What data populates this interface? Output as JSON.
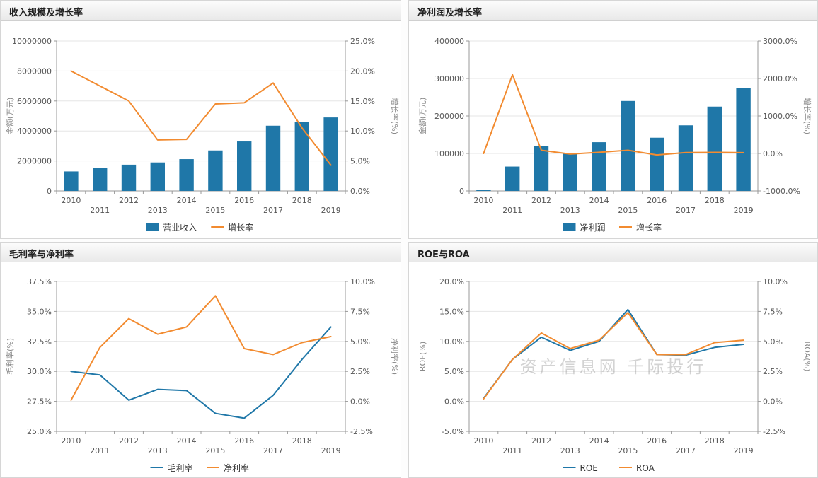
{
  "watermark": "资产信息网 千际投行",
  "charts": [
    {
      "title": "收入规模及增长率",
      "categories": [
        "2010",
        "2011",
        "2012",
        "2013",
        "2014",
        "2015",
        "2016",
        "2017",
        "2018",
        "2019"
      ],
      "left_axis": {
        "label": "金额(万元)",
        "min": 0,
        "max": 10000000,
        "step": 2000000,
        "format": "number"
      },
      "right_axis": {
        "label": "增长率(%)",
        "min": 0,
        "max": 25,
        "step": 5,
        "format": "percent"
      },
      "series": [
        {
          "name": "营业收入",
          "type": "bar",
          "axis": "left",
          "color": "#1f77a8",
          "values": [
            1300000,
            1520000,
            1750000,
            1900000,
            2120000,
            2700000,
            3300000,
            4350000,
            4600000,
            4900000
          ]
        },
        {
          "name": "增长率",
          "type": "line",
          "axis": "right",
          "color": "#f28b30",
          "values": [
            20.0,
            17.5,
            15.0,
            8.5,
            8.6,
            14.5,
            14.7,
            18.0,
            10.5,
            4.3
          ]
        }
      ]
    },
    {
      "title": "净利润及增长率",
      "categories": [
        "2010",
        "2011",
        "2012",
        "2013",
        "2014",
        "2015",
        "2016",
        "2017",
        "2018",
        "2019"
      ],
      "left_axis": {
        "label": "金额(万元)",
        "min": 0,
        "max": 400000,
        "step": 100000,
        "format": "number"
      },
      "right_axis": {
        "label": "增长率(%)",
        "min": -1000,
        "max": 3000,
        "step": 1000,
        "format": "percent"
      },
      "series": [
        {
          "name": "净利润",
          "type": "bar",
          "axis": "left",
          "color": "#1f77a8",
          "values": [
            3000,
            65000,
            120000,
            100000,
            130000,
            240000,
            142000,
            175000,
            225000,
            275000
          ]
        },
        {
          "name": "增长率",
          "type": "line",
          "axis": "right",
          "color": "#f28b30",
          "values": [
            0,
            2100,
            85,
            -17,
            30,
            85,
            -41,
            23,
            29,
            22
          ]
        }
      ]
    },
    {
      "title": "毛利率与净利率",
      "categories": [
        "2010",
        "2011",
        "2012",
        "2013",
        "2014",
        "2015",
        "2016",
        "2017",
        "2018",
        "2019"
      ],
      "left_axis": {
        "label": "毛利率(%)",
        "min": 25,
        "max": 37.5,
        "step": 2.5,
        "format": "percent"
      },
      "right_axis": {
        "label": "净利率(%)",
        "min": -2.5,
        "max": 10,
        "step": 2.5,
        "format": "percent"
      },
      "series": [
        {
          "name": "毛利率",
          "type": "line",
          "axis": "left",
          "color": "#1f77a8",
          "values": [
            30.0,
            29.7,
            27.6,
            28.5,
            28.4,
            26.5,
            26.1,
            28.0,
            31.0,
            33.7
          ]
        },
        {
          "name": "净利率",
          "type": "line",
          "axis": "right",
          "color": "#f28b30",
          "values": [
            0.1,
            4.5,
            6.9,
            5.6,
            6.2,
            8.8,
            4.4,
            3.9,
            4.9,
            5.4
          ]
        }
      ]
    },
    {
      "title": "ROE与ROA",
      "categories": [
        "2010",
        "2011",
        "2012",
        "2013",
        "2014",
        "2015",
        "2016",
        "2017",
        "2018",
        "2019"
      ],
      "left_axis": {
        "label": "ROE(%)",
        "min": -5,
        "max": 20,
        "step": 5,
        "format": "percent"
      },
      "right_axis": {
        "label": "ROA(%)",
        "min": -2.5,
        "max": 10,
        "step": 2.5,
        "format": "percent"
      },
      "series": [
        {
          "name": "ROE",
          "type": "line",
          "axis": "left",
          "color": "#1f77a8",
          "values": [
            0.5,
            7.0,
            10.7,
            8.5,
            10.0,
            15.3,
            7.8,
            7.7,
            9.0,
            9.5
          ]
        },
        {
          "name": "ROA",
          "type": "line",
          "axis": "right",
          "color": "#f28b30",
          "values": [
            0.2,
            3.5,
            5.7,
            4.4,
            5.1,
            7.4,
            3.9,
            3.9,
            4.9,
            5.1
          ]
        }
      ]
    }
  ],
  "chart_data": [
    {
      "type": "bar",
      "title": "收入规模及增长率",
      "categories": [
        "2010",
        "2011",
        "2012",
        "2013",
        "2014",
        "2015",
        "2016",
        "2017",
        "2018",
        "2019"
      ],
      "series": [
        {
          "name": "营业收入",
          "type": "bar",
          "values": [
            1300000,
            1520000,
            1750000,
            1900000,
            2120000,
            2700000,
            3300000,
            4350000,
            4600000,
            4900000
          ]
        },
        {
          "name": "增长率",
          "type": "line",
          "values": [
            20.0,
            17.5,
            15.0,
            8.5,
            8.6,
            14.5,
            14.7,
            18.0,
            10.5,
            4.3
          ]
        }
      ],
      "xlabel": "",
      "ylabel": "金额(万元)",
      "ylabel2": "增长率(%)",
      "ylim": [
        0,
        10000000
      ],
      "ylim2": [
        0,
        25
      ],
      "grid": true,
      "legend_position": "bottom"
    },
    {
      "type": "bar",
      "title": "净利润及增长率",
      "categories": [
        "2010",
        "2011",
        "2012",
        "2013",
        "2014",
        "2015",
        "2016",
        "2017",
        "2018",
        "2019"
      ],
      "series": [
        {
          "name": "净利润",
          "type": "bar",
          "values": [
            3000,
            65000,
            120000,
            100000,
            130000,
            240000,
            142000,
            175000,
            225000,
            275000
          ]
        },
        {
          "name": "增长率",
          "type": "line",
          "values": [
            0,
            2100,
            85,
            -17,
            30,
            85,
            -41,
            23,
            29,
            22
          ]
        }
      ],
      "xlabel": "",
      "ylabel": "金额(万元)",
      "ylabel2": "增长率(%)",
      "ylim": [
        0,
        400000
      ],
      "ylim2": [
        -1000,
        3000
      ],
      "grid": true,
      "legend_position": "bottom"
    },
    {
      "type": "line",
      "title": "毛利率与净利率",
      "categories": [
        "2010",
        "2011",
        "2012",
        "2013",
        "2014",
        "2015",
        "2016",
        "2017",
        "2018",
        "2019"
      ],
      "series": [
        {
          "name": "毛利率",
          "values": [
            30.0,
            29.7,
            27.6,
            28.5,
            28.4,
            26.5,
            26.1,
            28.0,
            31.0,
            33.7
          ]
        },
        {
          "name": "净利率",
          "values": [
            0.1,
            4.5,
            6.9,
            5.6,
            6.2,
            8.8,
            4.4,
            3.9,
            4.9,
            5.4
          ]
        }
      ],
      "xlabel": "",
      "ylabel": "毛利率(%)",
      "ylabel2": "净利率(%)",
      "ylim": [
        25,
        37.5
      ],
      "ylim2": [
        -2.5,
        10
      ],
      "grid": true,
      "legend_position": "bottom"
    },
    {
      "type": "line",
      "title": "ROE与ROA",
      "categories": [
        "2010",
        "2011",
        "2012",
        "2013",
        "2014",
        "2015",
        "2016",
        "2017",
        "2018",
        "2019"
      ],
      "series": [
        {
          "name": "ROE",
          "values": [
            0.5,
            7.0,
            10.7,
            8.5,
            10.0,
            15.3,
            7.8,
            7.7,
            9.0,
            9.5
          ]
        },
        {
          "name": "ROA",
          "values": [
            0.2,
            3.5,
            5.7,
            4.4,
            5.1,
            7.4,
            3.9,
            3.9,
            4.9,
            5.1
          ]
        }
      ],
      "xlabel": "",
      "ylabel": "ROE(%)",
      "ylabel2": "ROA(%)",
      "ylim": [
        -5,
        20
      ],
      "ylim2": [
        -2.5,
        10
      ],
      "grid": true,
      "legend_position": "bottom"
    }
  ]
}
